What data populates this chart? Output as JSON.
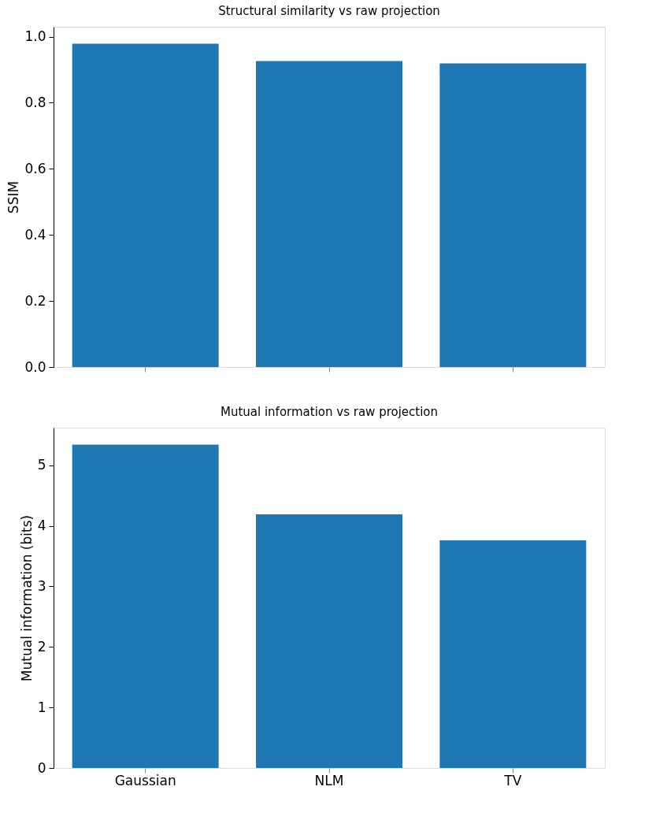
{
  "chart_data": [
    {
      "type": "bar",
      "title": "Structural similarity vs raw projection",
      "ylabel": "SSIM",
      "categories": [
        null,
        null,
        null
      ],
      "values": [
        0.979,
        0.926,
        0.919
      ],
      "color": "#1f77b4",
      "ylim": [
        0,
        1.03
      ],
      "yticks": [
        {
          "value": 0,
          "label": "0.0"
        },
        0.2,
        0.4,
        0.6,
        0.8,
        {
          "value": 1,
          "label": "1.0"
        }
      ],
      "tick_labels": "y"
    },
    {
      "type": "bar",
      "title": "Mutual information vs raw projection",
      "ylabel": "Mutual information (bits)",
      "categories": [
        "Gaussian",
        "NLM",
        "TV"
      ],
      "values": [
        5.34,
        4.19,
        3.76
      ],
      "color": "#1f77b4",
      "ylim": [
        0,
        5.62
      ],
      "yticks": [
        0,
        1,
        2,
        3,
        4,
        5
      ]
    }
  ]
}
